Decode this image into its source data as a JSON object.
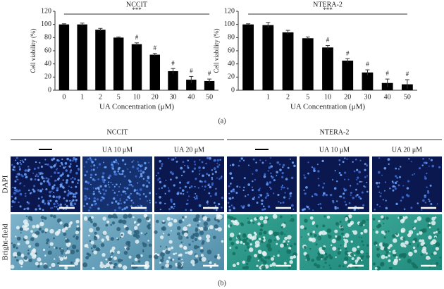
{
  "chart_data": [
    {
      "type": "bar",
      "title": "NCCIT",
      "x_label": "UA Concentration (μM)",
      "y_label": "Cell viability (%)",
      "categories": [
        "0",
        "1",
        "2",
        "5",
        "10",
        "20",
        "30",
        "40",
        "50"
      ],
      "values": [
        100,
        100,
        92,
        80,
        70,
        54,
        29,
        16,
        14
      ],
      "errors": [
        1,
        2,
        2,
        1,
        2,
        2,
        4,
        5,
        3
      ],
      "significance": [
        null,
        null,
        null,
        null,
        "#",
        "#",
        "#",
        "#",
        "#"
      ],
      "bracket_label": "***",
      "color": "#000000",
      "ylim": [
        0,
        120
      ],
      "yticks": [
        0,
        20,
        40,
        60,
        80,
        100,
        120
      ]
    },
    {
      "type": "bar",
      "title": "NTERA-2",
      "x_label": "UA Concentration (μM)",
      "y_label": "Cell viability (%)",
      "categories": [
        null,
        "1",
        "2",
        "5",
        "10",
        "20",
        "30",
        "40",
        "50"
      ],
      "values": [
        100,
        99,
        88,
        79,
        65,
        45,
        27,
        11,
        9
      ],
      "errors": [
        1,
        4,
        3,
        2,
        3,
        3,
        4,
        6,
        7
      ],
      "significance": [
        null,
        null,
        null,
        null,
        "#",
        "#",
        "#",
        "#",
        "#"
      ],
      "bracket_label": "***",
      "color": "#000000",
      "ylim": [
        0,
        120
      ],
      "yticks": [
        0,
        20,
        40,
        60,
        80,
        100,
        120
      ]
    }
  ],
  "panel_a_label": "(a)",
  "panel_b": {
    "label": "(b)",
    "groups": [
      {
        "name": "NCCIT",
        "columns": [
          "UA 10 μM",
          "UA 20 μM"
        ]
      },
      {
        "name": "NTERA-2",
        "columns": [
          "UA 10 μM",
          "UA 20 μM"
        ]
      }
    ],
    "rows": [
      "DAPI",
      "Bright-field"
    ]
  }
}
